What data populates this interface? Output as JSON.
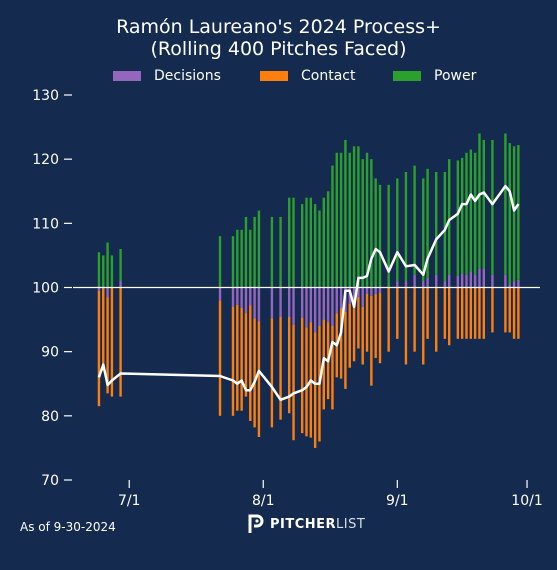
{
  "title_line1": "Ramón Laureano's 2024 Process+",
  "title_line2": "(Rolling 400 Pitches Faced)",
  "footer": {
    "as_of": "As of 9-30-2024",
    "brand_bold": "PITCHER",
    "brand_light": "LIST"
  },
  "colors": {
    "background": "#142a4f",
    "decisions": "#9467bd",
    "contact": "#ff7f0e",
    "power": "#2ca02c",
    "line": "#ffffff"
  },
  "chart_data": {
    "type": "bar",
    "baseline": 100,
    "ylim": [
      70,
      130
    ],
    "yticks": [
      70,
      80,
      90,
      100,
      110,
      120,
      130
    ],
    "xticks": [
      {
        "label": "7/1",
        "date": "2024-07-01"
      },
      {
        "label": "8/1",
        "date": "2024-08-01"
      },
      {
        "label": "9/1",
        "date": "2024-09-01"
      },
      {
        "label": "10/1",
        "date": "2024-10-01"
      }
    ],
    "legend": [
      "Decisions",
      "Contact",
      "Power"
    ],
    "series_names": {
      "decisions": "Decisions",
      "contact": "Contact",
      "power": "Power"
    },
    "dates": [
      "2024-06-24",
      "2024-06-25",
      "2024-06-26",
      "2024-06-27",
      "2024-06-29",
      "2024-07-22",
      "2024-07-25",
      "2024-07-26",
      "2024-07-27",
      "2024-07-28",
      "2024-07-29",
      "2024-07-30",
      "2024-07-31",
      "2024-08-03",
      "2024-08-05",
      "2024-08-07",
      "2024-08-08",
      "2024-08-10",
      "2024-08-11",
      "2024-08-12",
      "2024-08-13",
      "2024-08-14",
      "2024-08-15",
      "2024-08-16",
      "2024-08-17",
      "2024-08-18",
      "2024-08-19",
      "2024-08-20",
      "2024-08-21",
      "2024-08-22",
      "2024-08-23",
      "2024-08-24",
      "2024-08-25",
      "2024-08-26",
      "2024-08-27",
      "2024-08-28",
      "2024-08-30",
      "2024-09-01",
      "2024-09-03",
      "2024-09-05",
      "2024-09-07",
      "2024-09-08",
      "2024-09-10",
      "2024-09-12",
      "2024-09-13",
      "2024-09-15",
      "2024-09-16",
      "2024-09-17",
      "2024-09-18",
      "2024-09-19",
      "2024-09-20",
      "2024-09-21",
      "2024-09-23",
      "2024-09-26",
      "2024-09-27",
      "2024-09-28",
      "2024-09-29"
    ],
    "decisions": [
      -0.5,
      0,
      -1.5,
      0,
      1,
      -2,
      -3,
      -2.7,
      -3.2,
      -4,
      -2.8,
      -4.8,
      -5.3,
      -4.8,
      -4.6,
      -4.6,
      -5.8,
      -4.7,
      -6.2,
      -5.4,
      -7,
      -6,
      -5,
      -5.4,
      -6,
      -4,
      -3.2,
      -3.8,
      -2.5,
      -2.5,
      -1.5,
      -3,
      -1,
      -1.3,
      -1,
      -0.8,
      0,
      1,
      1,
      2,
      1,
      1.5,
      2,
      1,
      2,
      1.8,
      2.2,
      2,
      2.5,
      2,
      3,
      3,
      2,
      2,
      0.5,
      1,
      1.2
    ],
    "contact": [
      -18,
      -13,
      -15,
      -17,
      -17,
      -18,
      -17,
      -16.5,
      -16,
      -13,
      -18,
      -17,
      -18,
      -17,
      -16,
      -15,
      -18,
      -18,
      -17,
      -18,
      -18,
      -18,
      -14,
      -12,
      -13,
      -10,
      -11,
      -12,
      -10,
      -9,
      -8,
      -9,
      -9,
      -14,
      -10,
      -11,
      -10,
      -8,
      -12,
      -10,
      -12,
      -8,
      -10,
      -8,
      -9,
      -8,
      -8,
      -8,
      -8,
      -8,
      -8,
      -8,
      -7,
      -7,
      -7,
      -8,
      -8
    ],
    "power": [
      5.5,
      5,
      7,
      5,
      5,
      8,
      8,
      9,
      9,
      11,
      9,
      11,
      12,
      11,
      11,
      14,
      14,
      13,
      14,
      14,
      13,
      12,
      14,
      15,
      19,
      21,
      21,
      23,
      21,
      22,
      22,
      20,
      21,
      20,
      17,
      16,
      16,
      16,
      17,
      17,
      16,
      17,
      16,
      17,
      18,
      18,
      18,
      19,
      19,
      19,
      21,
      20,
      21,
      22,
      22,
      21,
      21
    ],
    "process": [
      86,
      88,
      84.8,
      85.5,
      86.6,
      86.2,
      85.5,
      85,
      85.5,
      84,
      84,
      85.3,
      87,
      84.5,
      82.5,
      83,
      83.5,
      84,
      84.5,
      85.5,
      85,
      85,
      89,
      88.5,
      91.5,
      91,
      93,
      99.5,
      99.5,
      97,
      101.5,
      101.5,
      101.8,
      104.5,
      106,
      105.5,
      102.5,
      105.5,
      103.3,
      103.5,
      102,
      104.5,
      107.5,
      109,
      110.5,
      111.5,
      113,
      113,
      114.5,
      113.5,
      114.5,
      114.8,
      113,
      115.8,
      115,
      112,
      113
    ]
  }
}
